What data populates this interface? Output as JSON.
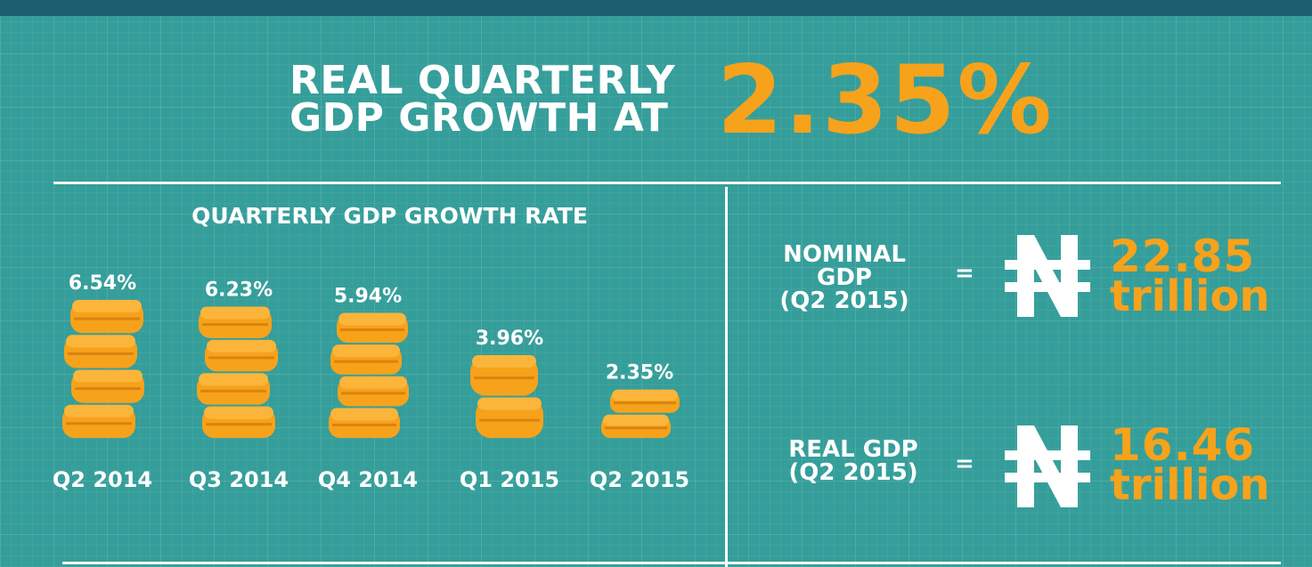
{
  "headline": {
    "line1": "REAL QUARTERLY",
    "line2": "GDP GROWTH AT",
    "value": "2.35%"
  },
  "chart_data": {
    "type": "bar",
    "title": "QUARTERLY GDP GROWTH RATE",
    "categories": [
      "Q2 2014",
      "Q3 2014",
      "Q4 2014",
      "Q1 2015",
      "Q2 2015"
    ],
    "values": [
      6.54,
      6.23,
      5.94,
      3.96,
      2.35
    ],
    "value_labels": [
      "6.54%",
      "6.23%",
      "5.94%",
      "3.96%",
      "2.35%"
    ],
    "ylim": [
      0,
      7
    ],
    "grid": false,
    "bar_color": "#f7a21b"
  },
  "stats": {
    "nominal": {
      "label_line1": "NOMINAL",
      "label_line2": "GDP",
      "label_line3": "(Q2 2015)",
      "equals": "=",
      "currency_icon": "naira-icon",
      "amount": "22.85",
      "unit": "trillion"
    },
    "real": {
      "label_line1": "REAL GDP",
      "label_line2": "(Q2 2015)",
      "equals": "=",
      "currency_icon": "naira-icon",
      "amount": "16.46",
      "unit": "trillion"
    }
  },
  "colors": {
    "background": "#359e9a",
    "top_bar": "#1d5e70",
    "accent": "#f7a21b",
    "text": "#ffffff"
  }
}
